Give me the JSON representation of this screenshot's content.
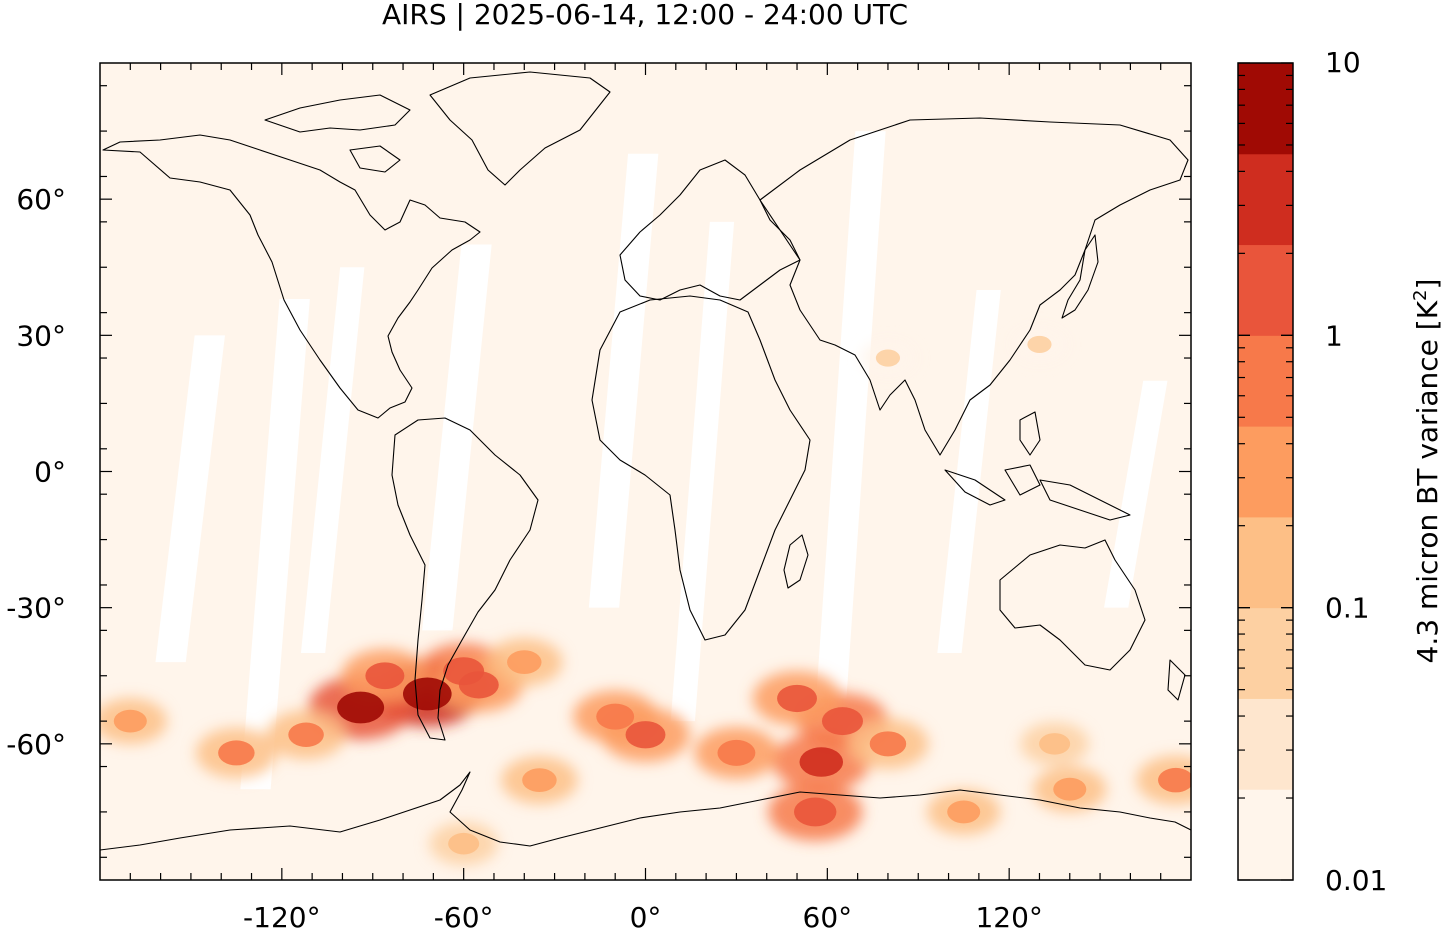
{
  "title": "AIRS | 2025-06-14, 12:00 - 24:00 UTC",
  "map": {
    "projection": "plate-carree",
    "lon_range": [
      -180,
      180
    ],
    "lat_range": [
      -90,
      90
    ],
    "lon_ticks": [
      {
        "value": -120,
        "label": "-120°"
      },
      {
        "value": -60,
        "label": "-60°"
      },
      {
        "value": 0,
        "label": "0°"
      },
      {
        "value": 60,
        "label": "60°"
      },
      {
        "value": 120,
        "label": "120°"
      }
    ],
    "lat_ticks": [
      {
        "value": 60,
        "label": "60°"
      },
      {
        "value": 30,
        "label": "30°"
      },
      {
        "value": 0,
        "label": "0°"
      },
      {
        "value": -30,
        "label": "-30°"
      },
      {
        "value": -60,
        "label": "-60°"
      }
    ],
    "background_color": "#fff5eb",
    "coastline_color": "#000000"
  },
  "colorbar": {
    "label": "4.3 micron BT variance [K",
    "label_sup": "2",
    "label_end": "]",
    "scale": "log",
    "range": [
      0.01,
      10
    ],
    "tick_labels": [
      {
        "value": 10,
        "label": "10"
      },
      {
        "value": 1,
        "label": "1"
      },
      {
        "value": 0.1,
        "label": "0.1"
      },
      {
        "value": 0.01,
        "label": "0.01"
      }
    ],
    "colors": [
      "#fff5eb",
      "#fee6ce",
      "#fdd0a2",
      "#fdbf86",
      "#fd9c5f",
      "#f7794a",
      "#e9553b",
      "#cf2d1f",
      "#a00a04"
    ]
  },
  "chart_data": {
    "type": "heatmap",
    "title": "AIRS | 2025-06-14, 12:00 - 24:00 UTC",
    "variable": "4.3 micron BT variance",
    "units": "K^2",
    "scale": "log",
    "vmin": 0.01,
    "vmax": 10,
    "data_gaps": [
      {
        "lon": [
          -158,
          -148
        ],
        "lat": [
          -42,
          30
        ]
      },
      {
        "lon": [
          -130,
          -120
        ],
        "lat": [
          -70,
          38
        ]
      },
      {
        "lon": [
          -110,
          -102
        ],
        "lat": [
          -40,
          45
        ]
      },
      {
        "lon": [
          -70,
          -60
        ],
        "lat": [
          -35,
          50
        ]
      },
      {
        "lon": [
          -15,
          -5
        ],
        "lat": [
          -30,
          70
        ]
      },
      {
        "lon": [
          12,
          20
        ],
        "lat": [
          -55,
          55
        ]
      },
      {
        "lon": [
          60,
          70
        ],
        "lat": [
          -50,
          75
        ]
      },
      {
        "lon": [
          100,
          108
        ],
        "lat": [
          -40,
          40
        ]
      },
      {
        "lon": [
          155,
          163
        ],
        "lat": [
          -30,
          20
        ]
      }
    ],
    "hotspots": [
      {
        "lon": -72,
        "lat": -49,
        "value": 7.0
      },
      {
        "lon": -94,
        "lat": -52,
        "value": 5.0
      },
      {
        "lon": -60,
        "lat": -44,
        "value": 1.5
      },
      {
        "lon": -55,
        "lat": -47,
        "value": 1.2
      },
      {
        "lon": -86,
        "lat": -45,
        "value": 1.0
      },
      {
        "lon": 58,
        "lat": -64,
        "value": 2.5
      },
      {
        "lon": 56,
        "lat": -75,
        "value": 2.0
      },
      {
        "lon": 65,
        "lat": -55,
        "value": 1.5
      },
      {
        "lon": 50,
        "lat": -50,
        "value": 1.2
      },
      {
        "lon": 0,
        "lat": -58,
        "value": 1.2
      },
      {
        "lon": -10,
        "lat": -54,
        "value": 0.8
      },
      {
        "lon": 30,
        "lat": -62,
        "value": 0.8
      },
      {
        "lon": 80,
        "lat": -60,
        "value": 0.6
      },
      {
        "lon": -135,
        "lat": -62,
        "value": 0.6
      },
      {
        "lon": -112,
        "lat": -58,
        "value": 0.5
      },
      {
        "lon": -40,
        "lat": -42,
        "value": 0.4
      },
      {
        "lon": -35,
        "lat": -68,
        "value": 0.4
      },
      {
        "lon": 105,
        "lat": -75,
        "value": 0.3
      },
      {
        "lon": 140,
        "lat": -70,
        "value": 0.3
      },
      {
        "lon": 175,
        "lat": -68,
        "value": 0.5
      },
      {
        "lon": -170,
        "lat": -55,
        "value": 0.3
      },
      {
        "lon": 135,
        "lat": -60,
        "value": 0.2
      },
      {
        "lon": -60,
        "lat": -82,
        "value": 0.2
      },
      {
        "lon": 80,
        "lat": 25,
        "value": 0.05
      },
      {
        "lon": 130,
        "lat": 28,
        "value": 0.05
      }
    ]
  }
}
